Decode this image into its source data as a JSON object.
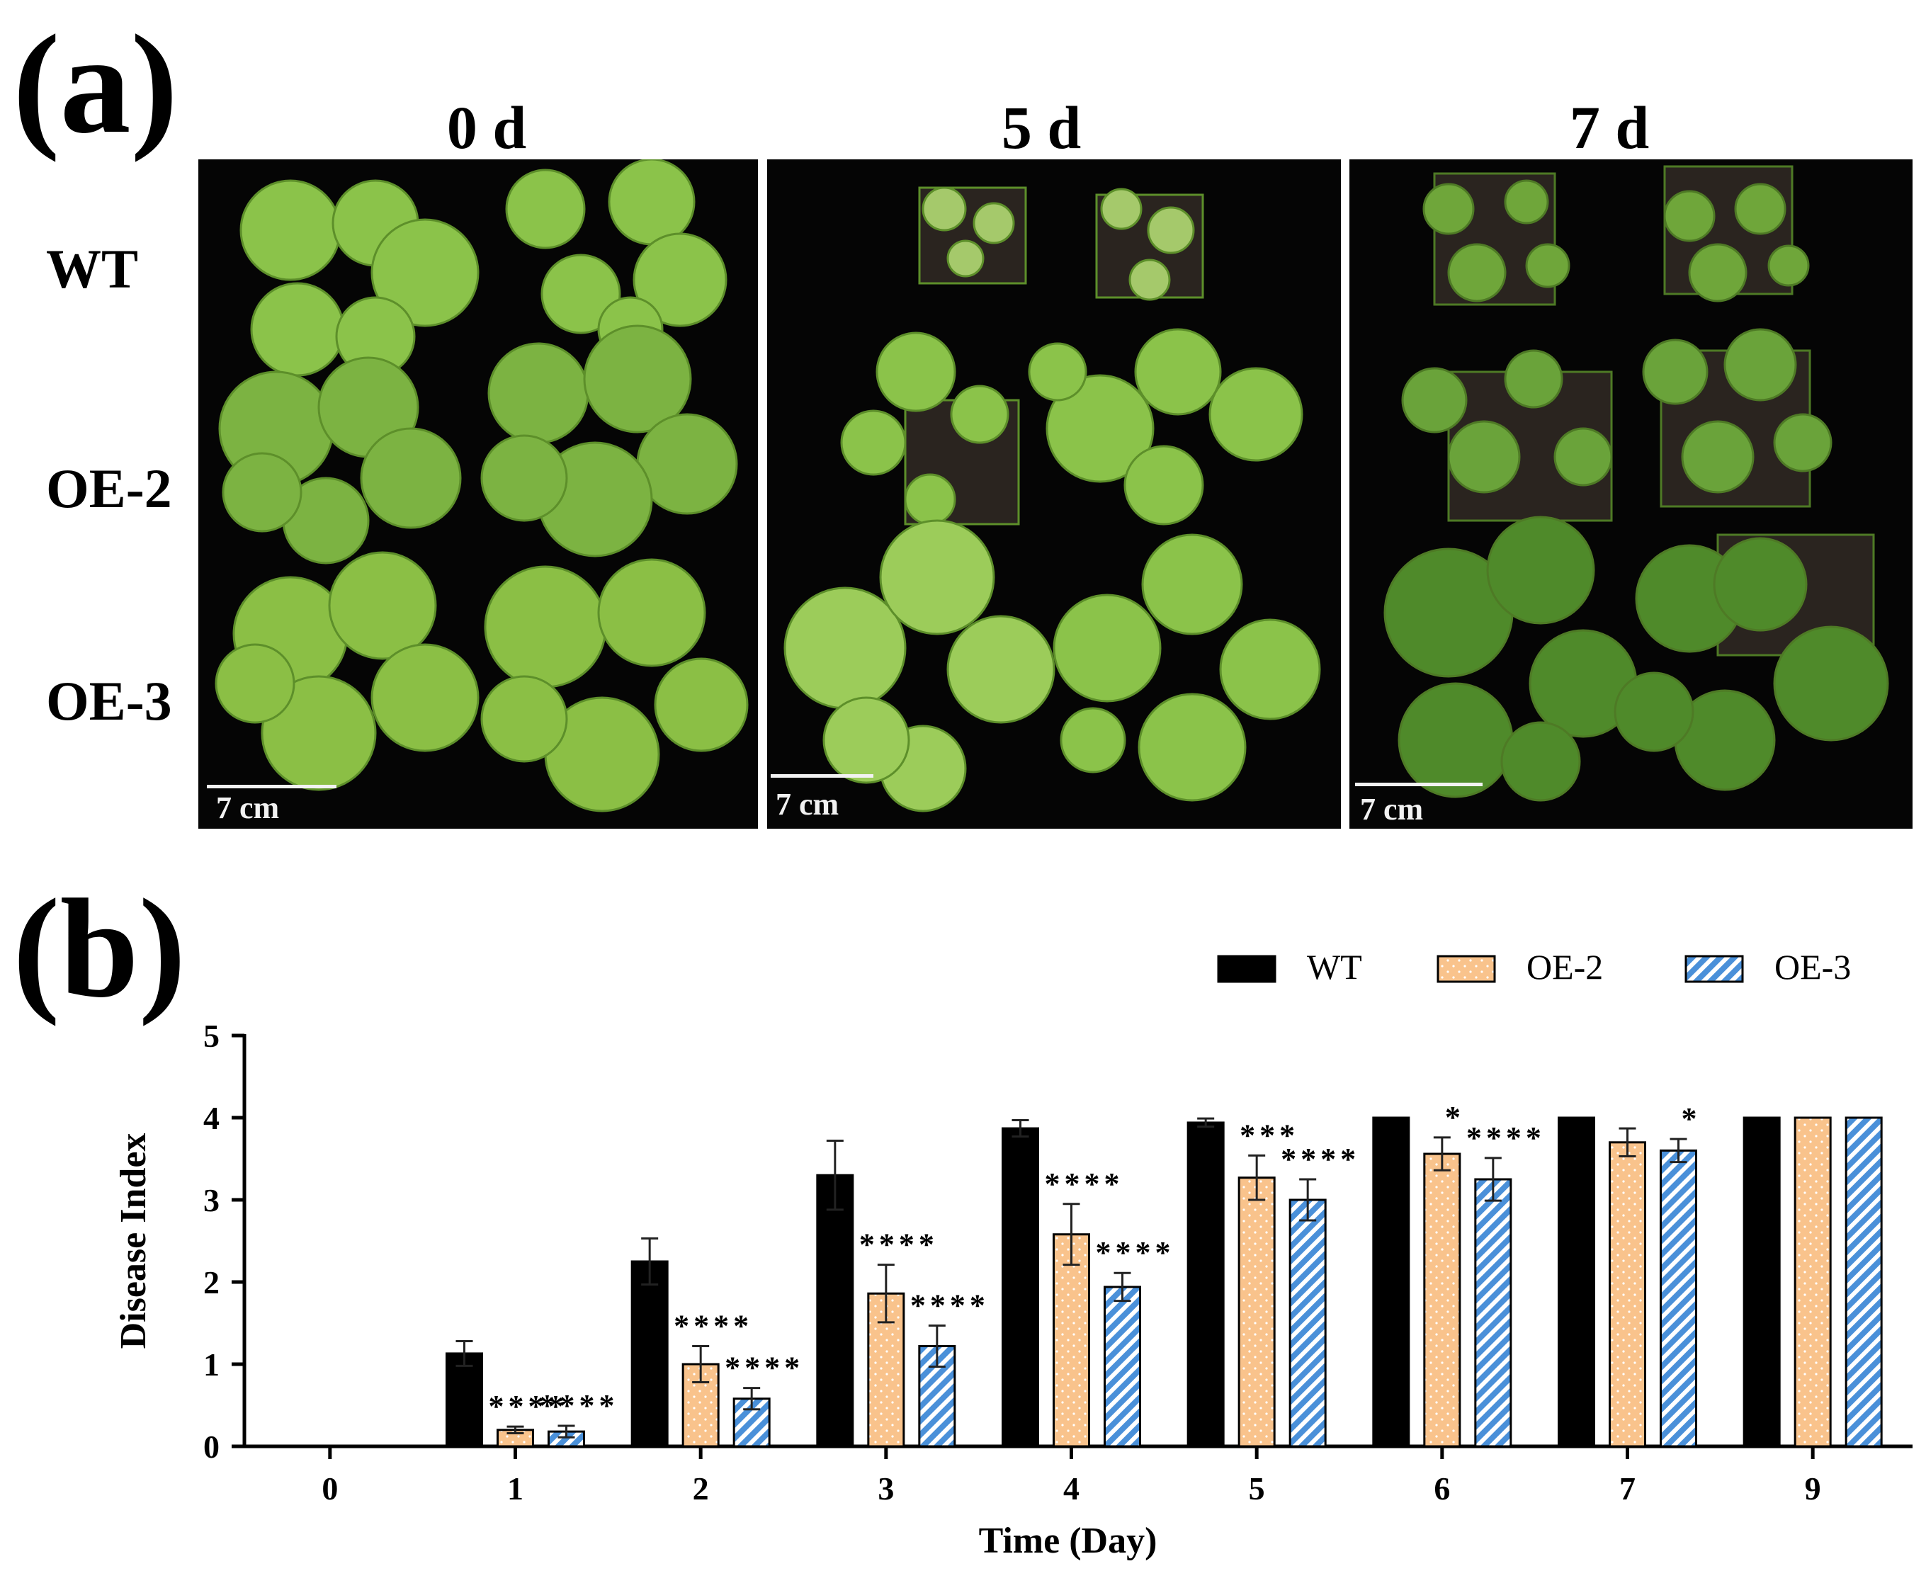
{
  "panel_a": {
    "label": "(a)",
    "columns": [
      "0 d",
      "5 d",
      "7 d"
    ],
    "rows": [
      "WT",
      "OE-2",
      "OE-3"
    ],
    "scale_bar": "7 cm"
  },
  "panel_b": {
    "label": "(b)"
  },
  "chart_data": {
    "type": "bar",
    "title": "",
    "xlabel": "Time (Day)",
    "ylabel": "Disease Index",
    "ylim": [
      0,
      5
    ],
    "yticks": [
      0,
      1,
      2,
      3,
      4,
      5
    ],
    "categories": [
      "0",
      "1",
      "2",
      "3",
      "4",
      "5",
      "6",
      "7",
      "9"
    ],
    "legend_position": "top-right",
    "series": [
      {
        "name": "WT",
        "color": "#000000",
        "pattern": "solid",
        "values": [
          0,
          1.13,
          2.25,
          3.3,
          3.87,
          3.94,
          4.0,
          4.0,
          4.0
        ],
        "errors": [
          0,
          0.15,
          0.28,
          0.42,
          0.1,
          0.05,
          0,
          0,
          0
        ],
        "significance": [
          "",
          "",
          "",
          "",
          "",
          "",
          "",
          "",
          ""
        ]
      },
      {
        "name": "OE-2",
        "color": "#f9c38c",
        "pattern": "dotted",
        "values": [
          0,
          0.2,
          1.0,
          1.86,
          2.58,
          3.27,
          3.56,
          3.7,
          4.0
        ],
        "errors": [
          0,
          0.04,
          0.22,
          0.35,
          0.37,
          0.27,
          0.2,
          0.17,
          0
        ],
        "significance": [
          "",
          "****",
          "****",
          "****",
          "****",
          "***",
          "*",
          "",
          ""
        ]
      },
      {
        "name": "OE-3",
        "color": "#4a90d9",
        "pattern": "hatched",
        "values": [
          0,
          0.18,
          0.58,
          1.22,
          1.94,
          3.0,
          3.25,
          3.6,
          4.0
        ],
        "errors": [
          0,
          0.07,
          0.13,
          0.25,
          0.17,
          0.25,
          0.26,
          0.14,
          0
        ],
        "significance": [
          "",
          "****",
          "****",
          "****",
          "****",
          "****",
          "****",
          "*",
          ""
        ]
      }
    ]
  }
}
